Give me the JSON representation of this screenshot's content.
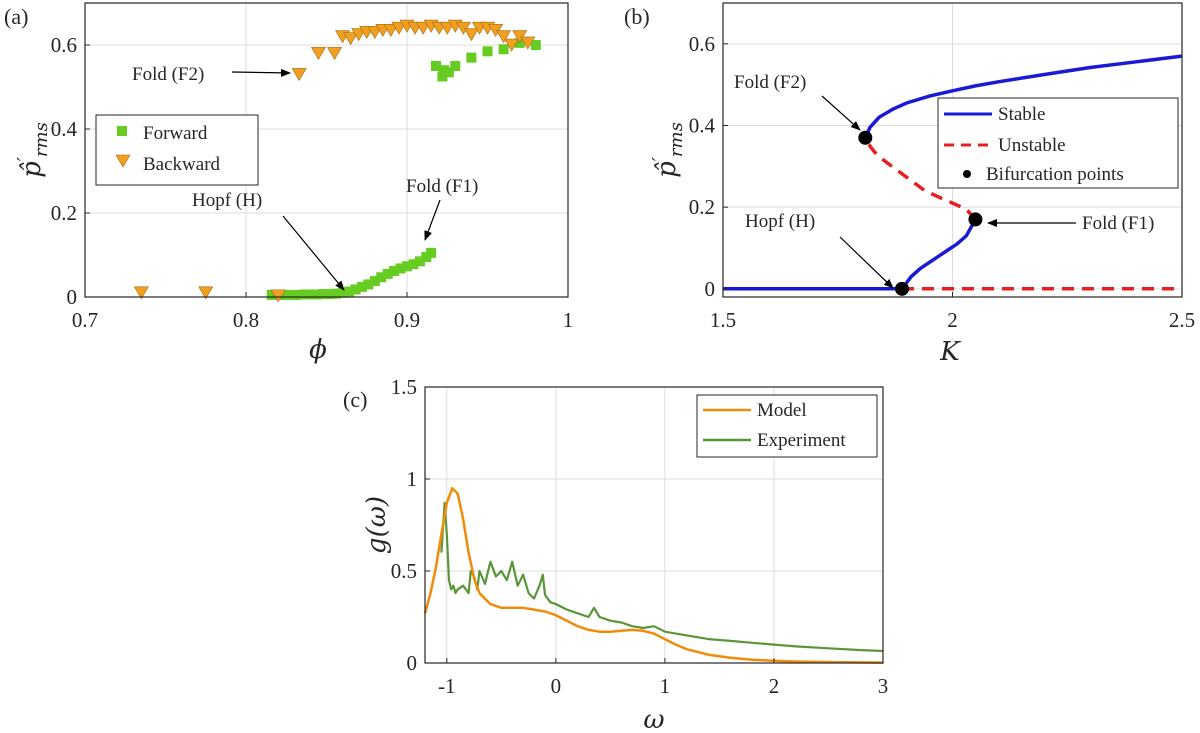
{
  "colors": {
    "forward": "#66cc22",
    "backward": "#f0a020",
    "stable": "#1a1ad6",
    "unstable": "#e62020",
    "bif": "#000000",
    "model": "#f08c0a",
    "experiment": "#5a9638"
  },
  "chart_data": [
    {
      "type": "scatter",
      "panel_label": "(a)",
      "xlabel": "ϕ",
      "ylabel": "p̂′rms",
      "ylabel_main": "p̂",
      "ylabel_sup": "′",
      "ylabel_sub": "rms",
      "xlim": [
        0.7,
        1.0
      ],
      "ylim": [
        0,
        0.7
      ],
      "xticks": [
        0.7,
        0.8,
        0.9,
        1.0
      ],
      "xticklabels": [
        "0.7",
        "0.8",
        "0.9",
        "1"
      ],
      "yticks": [
        0,
        0.2,
        0.4,
        0.6
      ],
      "yticklabels": [
        "0",
        "0.2",
        "0.4",
        "0.6"
      ],
      "grid": true,
      "legend": {
        "position": "middle-left",
        "entries": [
          "Forward",
          "Backward"
        ]
      },
      "series": [
        {
          "name": "Forward",
          "marker": "square",
          "x": [
            0.816,
            0.821,
            0.826,
            0.831,
            0.836,
            0.84,
            0.844,
            0.848,
            0.852,
            0.856,
            0.86,
            0.864,
            0.868,
            0.872,
            0.876,
            0.88,
            0.884,
            0.888,
            0.892,
            0.896,
            0.9,
            0.904,
            0.908,
            0.912,
            0.915,
            0.918,
            0.922,
            0.923,
            0.926,
            0.93,
            0.94,
            0.95,
            0.96,
            0.97,
            0.98
          ],
          "y": [
            0.005,
            0.005,
            0.005,
            0.005,
            0.006,
            0.006,
            0.006,
            0.007,
            0.007,
            0.008,
            0.01,
            0.013,
            0.018,
            0.024,
            0.03,
            0.038,
            0.047,
            0.055,
            0.062,
            0.068,
            0.073,
            0.078,
            0.085,
            0.095,
            0.105,
            0.55,
            0.525,
            0.54,
            0.535,
            0.55,
            0.57,
            0.585,
            0.59,
            0.605,
            0.6
          ]
        },
        {
          "name": "Backward",
          "marker": "triangle-down",
          "x": [
            0.735,
            0.775,
            0.82,
            0.833,
            0.845,
            0.855,
            0.86,
            0.865,
            0.87,
            0.875,
            0.88,
            0.885,
            0.89,
            0.895,
            0.9,
            0.905,
            0.91,
            0.915,
            0.92,
            0.925,
            0.93,
            0.935,
            0.94,
            0.945,
            0.95,
            0.955,
            0.96,
            0.965,
            0.97,
            0.975
          ],
          "y": [
            0.01,
            0.01,
            0.003,
            0.53,
            0.58,
            0.58,
            0.62,
            0.615,
            0.625,
            0.63,
            0.63,
            0.635,
            0.635,
            0.64,
            0.645,
            0.64,
            0.64,
            0.645,
            0.64,
            0.64,
            0.645,
            0.64,
            0.625,
            0.64,
            0.64,
            0.635,
            0.62,
            0.6,
            0.62,
            0.605
          ]
        }
      ],
      "annotations": [
        {
          "text": "Fold (F2)",
          "x": 0.833,
          "y": 0.53
        },
        {
          "text": "Hopf (H)",
          "x": 0.862,
          "y": 0.008
        },
        {
          "text": "Fold (F1)",
          "x": 0.915,
          "y": 0.105
        }
      ]
    },
    {
      "type": "line",
      "panel_label": "(b)",
      "xlabel": "K",
      "ylabel": "p̂′rms",
      "ylabel_main": "p̂",
      "ylabel_sup": "′",
      "ylabel_sub": "rms",
      "xlim": [
        1.5,
        2.5
      ],
      "ylim": [
        -0.02,
        0.7
      ],
      "xticks": [
        1.5,
        2.0,
        2.5
      ],
      "xticklabels": [
        "1.5",
        "2",
        "2.5"
      ],
      "yticks": [
        0,
        0.2,
        0.4,
        0.6
      ],
      "yticklabels": [
        "0",
        "0.2",
        "0.4",
        "0.6"
      ],
      "grid": true,
      "legend": {
        "position": "right",
        "entries": [
          "Stable",
          "Unstable",
          "Bifurcation points"
        ]
      },
      "series": [
        {
          "name": "Stable (zero state)",
          "style": "solid",
          "x": [
            1.5,
            1.89
          ],
          "y": [
            0,
            0
          ]
        },
        {
          "name": "Unstable (zero state)",
          "style": "dashed",
          "x": [
            1.89,
            2.5
          ],
          "y": [
            0,
            0
          ]
        },
        {
          "name": "Stable (lower branch)",
          "style": "solid",
          "x": [
            1.89,
            1.9,
            1.91,
            1.93,
            1.95,
            1.97,
            1.99,
            2.01,
            2.03,
            2.04,
            2.05
          ],
          "y": [
            0,
            0.015,
            0.03,
            0.05,
            0.065,
            0.08,
            0.095,
            0.11,
            0.13,
            0.15,
            0.17
          ]
        },
        {
          "name": "Unstable (middle branch)",
          "style": "dashed",
          "x": [
            2.05,
            2.03,
            2.0,
            1.97,
            1.94,
            1.91,
            1.88,
            1.85,
            1.83,
            1.82,
            1.81
          ],
          "y": [
            0.17,
            0.195,
            0.21,
            0.225,
            0.24,
            0.265,
            0.29,
            0.315,
            0.335,
            0.35,
            0.37
          ]
        },
        {
          "name": "Stable (upper branch)",
          "style": "solid",
          "x": [
            1.81,
            1.82,
            1.84,
            1.87,
            1.9,
            1.95,
            2.0,
            2.05,
            2.1,
            2.2,
            2.3,
            2.4,
            2.5
          ],
          "y": [
            0.37,
            0.395,
            0.42,
            0.44,
            0.455,
            0.472,
            0.485,
            0.497,
            0.507,
            0.525,
            0.542,
            0.556,
            0.57
          ]
        }
      ],
      "bifurcation_points": {
        "x": [
          1.89,
          1.81,
          2.05
        ],
        "y": [
          0,
          0.37,
          0.17
        ]
      },
      "annotations": [
        {
          "text": "Fold (F2)",
          "x": 1.81,
          "y": 0.37
        },
        {
          "text": "Hopf (H)",
          "x": 1.89,
          "y": 0
        },
        {
          "text": "Fold (F1)",
          "x": 2.05,
          "y": 0.17
        }
      ]
    },
    {
      "type": "line",
      "panel_label": "(c)",
      "xlabel": "ω",
      "ylabel": "g(ω)",
      "xlim": [
        -1.2,
        3.0
      ],
      "ylim": [
        0,
        1.5
      ],
      "xticks": [
        -1,
        0,
        1,
        2,
        3
      ],
      "xticklabels": [
        "-1",
        "0",
        "1",
        "2",
        "3"
      ],
      "yticks": [
        0,
        0.5,
        1,
        1.5
      ],
      "yticklabels": [
        "0",
        "0.5",
        "1",
        "1.5"
      ],
      "grid": true,
      "legend": {
        "position": "top-right",
        "entries": [
          "Model",
          "Experiment"
        ]
      },
      "series": [
        {
          "name": "Model",
          "x": [
            -1.2,
            -1.15,
            -1.1,
            -1.05,
            -1.0,
            -0.95,
            -0.9,
            -0.85,
            -0.8,
            -0.75,
            -0.7,
            -0.6,
            -0.5,
            -0.4,
            -0.3,
            -0.2,
            -0.1,
            0.0,
            0.1,
            0.2,
            0.3,
            0.4,
            0.5,
            0.6,
            0.7,
            0.8,
            0.9,
            1.0,
            1.1,
            1.2,
            1.4,
            1.6,
            1.8,
            2.0,
            2.2,
            2.5,
            2.8,
            3.0
          ],
          "y": [
            0.27,
            0.38,
            0.52,
            0.7,
            0.87,
            0.95,
            0.92,
            0.78,
            0.6,
            0.46,
            0.38,
            0.32,
            0.3,
            0.3,
            0.3,
            0.29,
            0.28,
            0.26,
            0.23,
            0.2,
            0.18,
            0.17,
            0.17,
            0.175,
            0.18,
            0.175,
            0.16,
            0.13,
            0.1,
            0.075,
            0.045,
            0.028,
            0.018,
            0.012,
            0.008,
            0.005,
            0.003,
            0.002
          ]
        },
        {
          "name": "Experiment",
          "x": [
            -1.05,
            -1.02,
            -1.0,
            -0.98,
            -0.96,
            -0.94,
            -0.92,
            -0.9,
            -0.85,
            -0.8,
            -0.78,
            -0.75,
            -0.72,
            -0.7,
            -0.65,
            -0.6,
            -0.55,
            -0.5,
            -0.45,
            -0.4,
            -0.35,
            -0.3,
            -0.25,
            -0.2,
            -0.15,
            -0.12,
            -0.1,
            -0.05,
            0.0,
            0.1,
            0.2,
            0.3,
            0.35,
            0.4,
            0.5,
            0.6,
            0.7,
            0.8,
            0.9,
            1.0,
            1.2,
            1.4,
            1.6,
            1.8,
            2.0,
            2.2,
            2.5,
            2.8,
            3.0
          ],
          "y": [
            0.6,
            0.87,
            0.7,
            0.45,
            0.4,
            0.42,
            0.38,
            0.4,
            0.42,
            0.38,
            0.5,
            0.47,
            0.4,
            0.5,
            0.43,
            0.55,
            0.47,
            0.5,
            0.45,
            0.55,
            0.42,
            0.48,
            0.38,
            0.35,
            0.42,
            0.48,
            0.37,
            0.33,
            0.32,
            0.29,
            0.27,
            0.25,
            0.3,
            0.25,
            0.23,
            0.22,
            0.2,
            0.19,
            0.2,
            0.17,
            0.15,
            0.13,
            0.12,
            0.11,
            0.1,
            0.09,
            0.08,
            0.07,
            0.065
          ]
        }
      ]
    }
  ]
}
